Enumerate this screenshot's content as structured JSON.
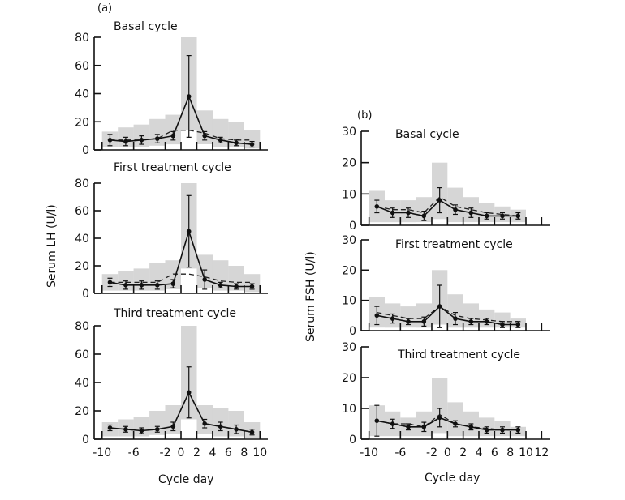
{
  "chart_data": {
    "type": "line",
    "x_tick_labels": [
      "-10",
      "-6",
      "-2",
      "0",
      "2",
      "4",
      "6",
      "8",
      "10",
      "12"
    ],
    "panels": [
      {
        "id": "lh-basal",
        "group": "a",
        "group_label": "(a)",
        "title": "Basal cycle",
        "ylabel": "Serum LH (U/l)",
        "xlabel": "Cycle day",
        "ylim": [
          0,
          80
        ],
        "yticks": [
          0,
          20,
          40,
          60,
          80
        ],
        "xlim": [
          -11,
          11
        ],
        "xticks": [
          -10,
          -6,
          -2,
          0,
          2,
          4,
          6,
          8,
          10
        ],
        "xtick_labels_shown": false,
        "x": [
          -9,
          -7,
          -5,
          -3,
          -1,
          1,
          3,
          5,
          7,
          9
        ],
        "y": [
          7,
          6,
          7,
          8,
          10,
          38,
          10,
          7,
          5,
          4
        ],
        "err": [
          4,
          3,
          3,
          3,
          3,
          29,
          3,
          2,
          2,
          2
        ],
        "range": [
          [
            2,
            13
          ],
          [
            2,
            16
          ],
          [
            2,
            18
          ],
          [
            3,
            22
          ],
          [
            4,
            25
          ],
          [
            14,
            80
          ],
          [
            4,
            28
          ],
          [
            2,
            22
          ],
          [
            2,
            20
          ],
          [
            1,
            14
          ]
        ],
        "dashed": [
          7,
          7,
          7,
          8,
          14,
          14,
          12,
          8,
          7,
          7
        ]
      },
      {
        "id": "lh-first",
        "group": "a",
        "title": "First treatment cycle",
        "ylabel": "Serum LH (U/l)",
        "xlabel": "Cycle day",
        "ylim": [
          0,
          80
        ],
        "yticks": [
          0,
          20,
          40,
          60,
          80
        ],
        "xlim": [
          -11,
          11
        ],
        "xticks": [
          -10,
          -6,
          -2,
          0,
          2,
          4,
          6,
          8,
          10
        ],
        "xtick_labels_shown": false,
        "x": [
          -9,
          -7,
          -5,
          -3,
          -1,
          1,
          3,
          5,
          7,
          9
        ],
        "y": [
          8,
          6,
          6,
          6,
          7,
          45,
          10,
          6,
          5,
          5
        ],
        "err": [
          3,
          3,
          3,
          3,
          3,
          26,
          7,
          2,
          2,
          2
        ],
        "range": [
          [
            2,
            14
          ],
          [
            2,
            16
          ],
          [
            2,
            18
          ],
          [
            2,
            22
          ],
          [
            3,
            24
          ],
          [
            18,
            80
          ],
          [
            4,
            28
          ],
          [
            2,
            24
          ],
          [
            2,
            20
          ],
          [
            1,
            14
          ]
        ],
        "dashed": [
          8,
          8,
          8,
          8,
          14,
          14,
          12,
          9,
          8,
          8
        ]
      },
      {
        "id": "lh-third",
        "group": "a",
        "title": "Third treatment cycle",
        "ylabel": "Serum LH (U/l)",
        "xlabel": "Cycle day",
        "ylim": [
          0,
          80
        ],
        "yticks": [
          0,
          20,
          40,
          60,
          80
        ],
        "xlim": [
          -11,
          11
        ],
        "xticks": [
          -10,
          -6,
          -2,
          0,
          2,
          4,
          6,
          8,
          10
        ],
        "xtick_labels_shown": true,
        "x": [
          -9,
          -7,
          -5,
          -3,
          -1,
          1,
          3,
          5,
          7,
          9
        ],
        "y": [
          8,
          7,
          6,
          7,
          9,
          33,
          11,
          9,
          7,
          5
        ],
        "err": [
          2,
          2,
          2,
          2,
          3,
          18,
          3,
          3,
          3,
          2
        ],
        "range": [
          [
            2,
            12
          ],
          [
            2,
            14
          ],
          [
            2,
            16
          ],
          [
            3,
            20
          ],
          [
            4,
            24
          ],
          [
            14,
            80
          ],
          [
            4,
            24
          ],
          [
            2,
            22
          ],
          [
            2,
            20
          ],
          [
            1,
            12
          ]
        ],
        "dashed": null
      },
      {
        "id": "fsh-basal",
        "group": "b",
        "group_label": "(b)",
        "title": "Basal cycle",
        "ylabel": "Serum FSH (U/l)",
        "xlabel": "Cycle day",
        "ylim": [
          0,
          30
        ],
        "yticks": [
          0,
          10,
          20,
          30
        ],
        "xlim": [
          -11,
          13
        ],
        "xticks": [
          -10,
          -6,
          -2,
          0,
          2,
          4,
          6,
          8,
          10,
          12
        ],
        "xtick_labels_shown": false,
        "x": [
          -9,
          -7,
          -5,
          -3,
          -1,
          1,
          3,
          5,
          7,
          9
        ],
        "y": [
          6,
          4,
          4,
          3,
          8,
          5,
          4,
          3,
          3,
          3
        ],
        "err": [
          2,
          1.5,
          1.5,
          1.5,
          4,
          1.5,
          1.5,
          1,
          1,
          1
        ],
        "range": [
          [
            1,
            11
          ],
          [
            1,
            8
          ],
          [
            1,
            8
          ],
          [
            1,
            9
          ],
          [
            2,
            20
          ],
          [
            1,
            12
          ],
          [
            1,
            9
          ],
          [
            1,
            7
          ],
          [
            1,
            6
          ],
          [
            1,
            5
          ]
        ],
        "dashed": [
          6,
          5,
          5,
          4,
          9,
          6,
          5,
          4,
          3.5,
          3
        ]
      },
      {
        "id": "fsh-first",
        "group": "b",
        "title": "First treatment cycle",
        "ylabel": "Serum FSH (U/l)",
        "xlabel": "Cycle day",
        "ylim": [
          0,
          30
        ],
        "yticks": [
          0,
          10,
          20,
          30
        ],
        "xlim": [
          -11,
          13
        ],
        "xticks": [
          -10,
          -6,
          -2,
          0,
          2,
          4,
          6,
          8,
          10,
          12
        ],
        "xtick_labels_shown": false,
        "x": [
          -9,
          -7,
          -5,
          -3,
          -1,
          1,
          3,
          5,
          7,
          9
        ],
        "y": [
          5,
          4,
          3,
          3,
          8,
          4,
          3,
          3,
          2,
          2
        ],
        "err": [
          3,
          1.5,
          1,
          1.5,
          7,
          2,
          1,
          1,
          1,
          1
        ],
        "range": [
          [
            1,
            11
          ],
          [
            1,
            9
          ],
          [
            1,
            8
          ],
          [
            1,
            9
          ],
          [
            2,
            20
          ],
          [
            1,
            12
          ],
          [
            1,
            9
          ],
          [
            1,
            7
          ],
          [
            1,
            6
          ],
          [
            1,
            4
          ]
        ],
        "dashed": [
          6,
          5,
          4,
          4,
          8,
          5,
          4,
          3.5,
          3,
          3
        ]
      },
      {
        "id": "fsh-third",
        "group": "b",
        "title": "Third treatment cycle",
        "ylabel": "Serum FSH (U/l)",
        "xlabel": "Cycle day",
        "ylim": [
          0,
          30
        ],
        "yticks": [
          0,
          10,
          20,
          30
        ],
        "xlim": [
          -11,
          13
        ],
        "xticks": [
          -10,
          -6,
          -2,
          0,
          2,
          4,
          6,
          8,
          10,
          12
        ],
        "xtick_labels_shown": true,
        "x": [
          -9,
          -7,
          -5,
          -3,
          -1,
          1,
          3,
          5,
          7,
          9
        ],
        "y": [
          6,
          5,
          4,
          4,
          7,
          5,
          4,
          3,
          3,
          3
        ],
        "err": [
          5,
          1.5,
          1,
          1.5,
          3,
          1,
          1,
          1,
          1,
          1
        ],
        "range": [
          [
            1,
            11
          ],
          [
            1,
            9
          ],
          [
            1,
            7
          ],
          [
            1,
            9
          ],
          [
            2,
            20
          ],
          [
            1,
            12
          ],
          [
            1,
            9
          ],
          [
            1,
            7
          ],
          [
            1,
            6
          ],
          [
            1,
            4
          ]
        ],
        "dashed": [
          6,
          5,
          5,
          4,
          8,
          5,
          4,
          3.5,
          3,
          3
        ]
      }
    ]
  }
}
